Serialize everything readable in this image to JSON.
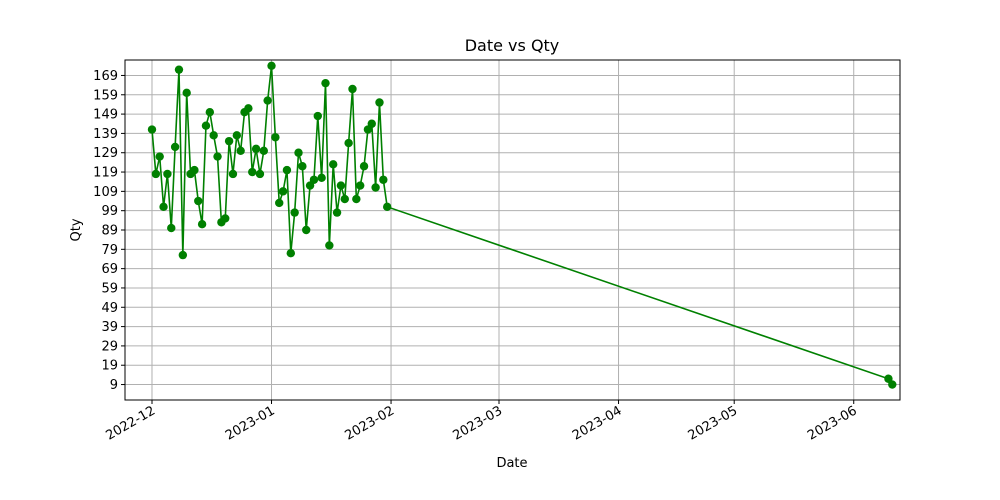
{
  "chart_data": {
    "type": "line",
    "title": "Date vs Qty",
    "xlabel": "Date",
    "ylabel": "Qty",
    "x_tick_labels": [
      "2022-12",
      "2023-01",
      "2023-02",
      "2023-03",
      "2023-04",
      "2023-05",
      "2023-06"
    ],
    "y_tick_labels": [
      "9",
      "19",
      "29",
      "39",
      "49",
      "59",
      "69",
      "79",
      "89",
      "99",
      "109",
      "119",
      "129",
      "139",
      "149",
      "159",
      "169"
    ],
    "xlim": [
      "2022-11-24",
      "2023-06-13"
    ],
    "ylim": [
      1,
      177
    ],
    "grid": true,
    "color": "#008000",
    "marker": "circle",
    "series": [
      {
        "x": [
          "2022-12-01",
          "2022-12-02",
          "2022-12-03",
          "2022-12-04",
          "2022-12-05",
          "2022-12-06",
          "2022-12-07",
          "2022-12-08",
          "2022-12-09",
          "2022-12-10",
          "2022-12-11",
          "2022-12-12",
          "2022-12-13",
          "2022-12-14",
          "2022-12-15",
          "2022-12-16",
          "2022-12-17",
          "2022-12-18",
          "2022-12-19",
          "2022-12-20",
          "2022-12-21",
          "2022-12-22",
          "2022-12-23",
          "2022-12-24",
          "2022-12-25",
          "2022-12-26",
          "2022-12-27",
          "2022-12-28",
          "2022-12-29",
          "2022-12-30",
          "2022-12-31",
          "2023-01-01",
          "2023-01-02",
          "2023-01-03",
          "2023-01-04",
          "2023-01-05",
          "2023-01-06",
          "2023-01-07",
          "2023-01-08",
          "2023-01-09",
          "2023-01-10",
          "2023-01-11",
          "2023-01-12",
          "2023-01-13",
          "2023-01-14",
          "2023-01-15",
          "2023-01-16",
          "2023-01-17",
          "2023-01-18",
          "2023-01-19",
          "2023-01-20",
          "2023-01-21",
          "2023-01-22",
          "2023-01-23",
          "2023-01-24",
          "2023-01-25",
          "2023-01-26",
          "2023-01-27",
          "2023-01-28",
          "2023-01-29",
          "2023-01-30",
          "2023-01-31",
          "2023-06-10",
          "2023-06-11"
        ],
        "y": [
          141,
          118,
          127,
          101,
          118,
          90,
          132,
          172,
          76,
          160,
          118,
          120,
          104,
          92,
          143,
          150,
          138,
          127,
          93,
          95,
          135,
          118,
          138,
          130,
          150,
          152,
          119,
          131,
          118,
          130,
          156,
          174,
          137,
          103,
          109,
          120,
          77,
          98,
          129,
          122,
          89,
          112,
          115,
          148,
          116,
          165,
          81,
          123,
          98,
          112,
          105,
          134,
          162,
          105,
          112,
          122,
          141,
          144,
          111,
          155,
          115,
          101,
          12,
          9
        ]
      }
    ]
  }
}
